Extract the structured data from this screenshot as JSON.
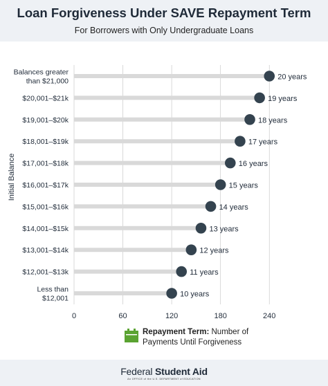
{
  "header": {
    "title": "Loan Forgiveness Under SAVE Repayment Term",
    "subtitle": "For Borrowers with Only Undergraduate Loans"
  },
  "legend": {
    "bold_text": "Repayment Term:",
    "text": " Number of",
    "text_line2": "Payments Until Forgiveness",
    "icon": "calendar-icon",
    "icon_color": "#5aa331"
  },
  "footer": {
    "brand_part1": "Federal ",
    "brand_part2": "Student Aid",
    "brand_sub": "An OFFICE of the U.S. DEPARTMENT of EDUCATION"
  },
  "colors": {
    "dot": "#34434f",
    "track": "#d9d9d9",
    "grid": "#cfcfcf",
    "header_bg": "#eef1f5"
  },
  "chart_data": {
    "type": "lollipop",
    "ylabel": "Initial Balance",
    "xlabel": "",
    "xlim": [
      0,
      250
    ],
    "xticks": [
      0,
      60,
      120,
      180,
      240
    ],
    "grid": "vertical",
    "categories": [
      [
        "Balances greater",
        "than $21,000"
      ],
      [
        "$20,001–$21k"
      ],
      [
        "$19,001–$20k"
      ],
      [
        "$18,001–$19k"
      ],
      [
        "$17,001–$18k"
      ],
      [
        "$16,001–$17k"
      ],
      [
        "$15,001–$16k"
      ],
      [
        "$14,001–$15k"
      ],
      [
        "$13,001–$14k"
      ],
      [
        "$12,001–$13k"
      ],
      [
        "Less than",
        "$12,001"
      ]
    ],
    "values": [
      240,
      228,
      216,
      204,
      192,
      180,
      168,
      156,
      144,
      132,
      120
    ],
    "value_labels": [
      "20 years",
      "19 years",
      "18 years",
      "17 years",
      "16 years",
      "15 years",
      "14 years",
      "13 years",
      "12 years",
      "11 years",
      "10 years"
    ]
  }
}
